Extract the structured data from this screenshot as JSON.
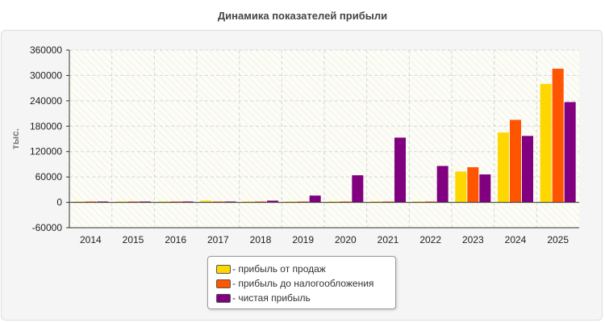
{
  "chart_data": {
    "type": "bar",
    "title": "Динамика показателей прибыли",
    "ylabel": "тыс.",
    "xlabel": "",
    "categories": [
      "2014",
      "2015",
      "2016",
      "2017",
      "2018",
      "2019",
      "2020",
      "2021",
      "2022",
      "2023",
      "2024",
      "2025"
    ],
    "ylim": [
      -60000,
      360000
    ],
    "yticks": [
      -60000,
      0,
      60000,
      120000,
      180000,
      240000,
      300000,
      360000
    ],
    "grid": true,
    "legend_position": "bottom-center",
    "series": [
      {
        "name": "- прибыль от продаж",
        "color": "#ffd700",
        "values": [
          2000,
          2000,
          2000,
          4000,
          2000,
          2000,
          2000,
          2000,
          2000,
          73000,
          165000,
          280000
        ]
      },
      {
        "name": "- прибыль до налогообложения",
        "color": "#ff5500",
        "values": [
          2000,
          2000,
          2000,
          2000,
          2000,
          2000,
          2000,
          2000,
          2000,
          83000,
          195000,
          316000
        ]
      },
      {
        "name": "- чистая прибыль",
        "color": "#800080",
        "values": [
          2000,
          2000,
          2000,
          2000,
          4000,
          16000,
          64000,
          153000,
          86000,
          66000,
          157000,
          237000
        ]
      }
    ]
  }
}
